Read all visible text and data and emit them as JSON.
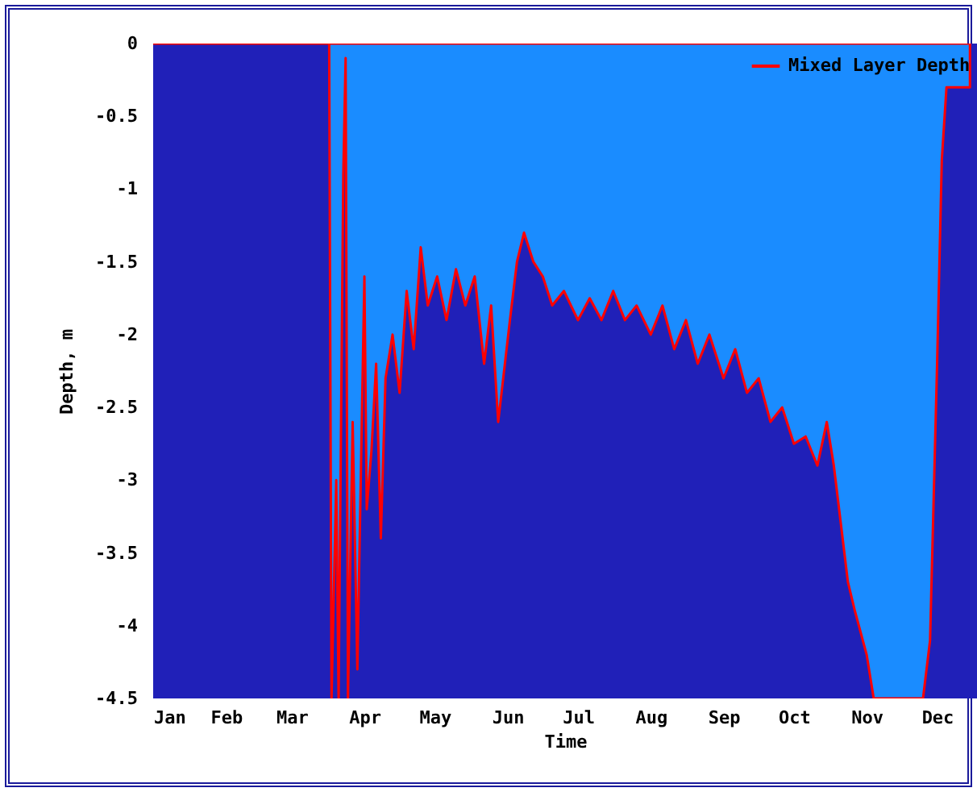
{
  "chart_data": {
    "type": "area",
    "xlabel": "Time",
    "ylabel": "Depth, m",
    "x": [
      "--01-01",
      "--03-17",
      "--03-18",
      "--03-20",
      "--03-21",
      "--03-23",
      "--03-24",
      "--03-25",
      "--03-27",
      "--03-29",
      "--04-01",
      "--04-02",
      "--04-04",
      "--04-06",
      "--04-08",
      "--04-10",
      "--04-13",
      "--04-16",
      "--04-19",
      "--04-22",
      "--04-25",
      "--04-28",
      "--05-02",
      "--05-06",
      "--05-10",
      "--05-14",
      "--05-18",
      "--05-22",
      "--05-25",
      "--05-28",
      "--06-02",
      "--06-05",
      "--06-08",
      "--06-12",
      "--06-16",
      "--06-20",
      "--06-25",
      "--07-01",
      "--07-06",
      "--07-11",
      "--07-16",
      "--07-21",
      "--07-26",
      "--08-01",
      "--08-06",
      "--08-11",
      "--08-16",
      "--08-21",
      "--08-26",
      "--09-01",
      "--09-06",
      "--09-11",
      "--09-16",
      "--09-21",
      "--09-26",
      "--10-01",
      "--10-06",
      "--10-11",
      "--10-15",
      "--10-18",
      "--10-21",
      "--10-24",
      "--10-27",
      "--11-01",
      "--11-04",
      "--11-10",
      "--11-20",
      "--11-25",
      "--11-28",
      "--12-01",
      "--12-03",
      "--12-05",
      "--12-15"
    ],
    "series": [
      {
        "name": "Mixed Layer Depth",
        "color": "#ff0000",
        "values": [
          0,
          0,
          -4.5,
          -3.0,
          -4.5,
          -0.9,
          -0.1,
          -4.5,
          -2.6,
          -4.3,
          -1.6,
          -3.2,
          -2.8,
          -2.2,
          -3.4,
          -2.3,
          -2.0,
          -2.4,
          -1.7,
          -2.1,
          -1.4,
          -1.8,
          -1.6,
          -1.9,
          -1.55,
          -1.8,
          -1.6,
          -2.2,
          -1.8,
          -2.6,
          -1.9,
          -1.5,
          -1.3,
          -1.5,
          -1.6,
          -1.8,
          -1.7,
          -1.9,
          -1.75,
          -1.9,
          -1.7,
          -1.9,
          -1.8,
          -2.0,
          -1.8,
          -2.1,
          -1.9,
          -2.2,
          -2.0,
          -2.3,
          -2.1,
          -2.4,
          -2.3,
          -2.6,
          -2.5,
          -2.75,
          -2.7,
          -2.9,
          -2.6,
          -2.9,
          -3.3,
          -3.7,
          -3.9,
          -4.2,
          -4.5,
          -4.5,
          -4.5,
          -4.5,
          -4.1,
          -2.2,
          -0.8,
          -0.3,
          -0.3
        ]
      }
    ],
    "xlim": [
      "--01-01",
      "--12-18"
    ],
    "xticks": [
      {
        "value": "--01-01",
        "label": "Jan"
      },
      {
        "value": "--02-01",
        "label": "Feb"
      },
      {
        "value": "--03-01",
        "label": "Mar"
      },
      {
        "value": "--04-01",
        "label": "Apr"
      },
      {
        "value": "--05-01",
        "label": "May"
      },
      {
        "value": "--06-01",
        "label": "Jun"
      },
      {
        "value": "--07-01",
        "label": "Jul"
      },
      {
        "value": "--08-01",
        "label": "Aug"
      },
      {
        "value": "--09-01",
        "label": "Sep"
      },
      {
        "value": "--10-01",
        "label": "Oct"
      },
      {
        "value": "--11-01",
        "label": "Nov"
      },
      {
        "value": "--12-01",
        "label": "Dec"
      }
    ],
    "ylim": [
      -4.5,
      0
    ],
    "yticks": [
      0,
      -0.5,
      -1,
      -1.5,
      -2,
      -2.5,
      -3,
      -3.5,
      -4,
      -4.5
    ],
    "grid": false,
    "legend": "top right",
    "line_style": "solid"
  }
}
